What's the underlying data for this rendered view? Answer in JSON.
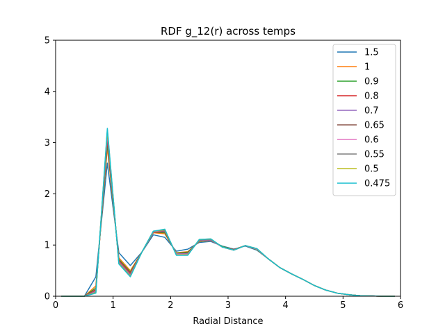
{
  "chart_data": {
    "type": "line",
    "title": "RDF g_12(r) across temps",
    "xlabel": "Radial Distance",
    "ylabel": "",
    "xlim": [
      0,
      6
    ],
    "ylim": [
      0,
      5
    ],
    "xticks": [
      "0",
      "1",
      "2",
      "3",
      "4",
      "5",
      "6"
    ],
    "yticks": [
      "0",
      "1",
      "2",
      "3",
      "4",
      "5"
    ],
    "grid": false,
    "legend_position": "top-right",
    "x": [
      0.1,
      0.3,
      0.5,
      0.7,
      0.9,
      1.1,
      1.3,
      1.5,
      1.7,
      1.9,
      2.1,
      2.3,
      2.5,
      2.7,
      2.9,
      3.1,
      3.3,
      3.5,
      3.7,
      3.9,
      4.1,
      4.3,
      4.5,
      4.7,
      4.9,
      5.1,
      5.3,
      5.5,
      5.7,
      5.9
    ],
    "series": [
      {
        "name": "1.5",
        "color": "#1f77b4",
        "values": [
          0,
          0,
          0,
          0.38,
          2.6,
          0.85,
          0.6,
          0.86,
          1.2,
          1.15,
          0.88,
          0.92,
          1.05,
          1.07,
          0.98,
          0.92,
          0.98,
          0.9,
          0.73,
          0.56,
          0.44,
          0.33,
          0.21,
          0.12,
          0.06,
          0.03,
          0.01,
          0.005,
          0,
          0
        ]
      },
      {
        "name": "1",
        "color": "#ff7f0e",
        "values": [
          0,
          0,
          0,
          0.2,
          2.9,
          0.75,
          0.5,
          0.86,
          1.24,
          1.22,
          0.85,
          0.87,
          1.07,
          1.09,
          0.97,
          0.91,
          0.99,
          0.91,
          0.73,
          0.56,
          0.44,
          0.33,
          0.21,
          0.12,
          0.06,
          0.03,
          0.01,
          0.005,
          0,
          0
        ]
      },
      {
        "name": "0.9",
        "color": "#2ca02c",
        "values": [
          0,
          0,
          0,
          0.16,
          2.98,
          0.72,
          0.47,
          0.86,
          1.25,
          1.24,
          0.84,
          0.86,
          1.08,
          1.1,
          0.97,
          0.91,
          0.99,
          0.91,
          0.73,
          0.56,
          0.44,
          0.33,
          0.21,
          0.12,
          0.06,
          0.03,
          0.01,
          0.005,
          0,
          0
        ]
      },
      {
        "name": "0.8",
        "color": "#d62728",
        "values": [
          0,
          0,
          0,
          0.13,
          3.05,
          0.7,
          0.45,
          0.86,
          1.25,
          1.26,
          0.83,
          0.84,
          1.09,
          1.1,
          0.96,
          0.91,
          0.99,
          0.92,
          0.73,
          0.56,
          0.44,
          0.33,
          0.21,
          0.12,
          0.06,
          0.03,
          0.01,
          0.005,
          0,
          0
        ]
      },
      {
        "name": "0.7",
        "color": "#9467bd",
        "values": [
          0,
          0,
          0,
          0.11,
          3.12,
          0.68,
          0.43,
          0.86,
          1.26,
          1.27,
          0.83,
          0.83,
          1.09,
          1.1,
          0.96,
          0.9,
          0.99,
          0.92,
          0.73,
          0.56,
          0.44,
          0.33,
          0.21,
          0.12,
          0.06,
          0.03,
          0.01,
          0.005,
          0,
          0
        ]
      },
      {
        "name": "0.65",
        "color": "#8c564b",
        "values": [
          0,
          0,
          0,
          0.1,
          3.15,
          0.67,
          0.42,
          0.86,
          1.26,
          1.28,
          0.82,
          0.82,
          1.1,
          1.11,
          0.96,
          0.9,
          0.99,
          0.92,
          0.73,
          0.56,
          0.44,
          0.33,
          0.21,
          0.12,
          0.06,
          0.03,
          0.01,
          0.005,
          0,
          0
        ]
      },
      {
        "name": "0.6",
        "color": "#e377c2",
        "values": [
          0,
          0,
          0,
          0.09,
          3.18,
          0.66,
          0.41,
          0.86,
          1.26,
          1.29,
          0.82,
          0.82,
          1.1,
          1.11,
          0.96,
          0.9,
          0.99,
          0.92,
          0.73,
          0.56,
          0.44,
          0.33,
          0.21,
          0.12,
          0.06,
          0.03,
          0.01,
          0.005,
          0,
          0
        ]
      },
      {
        "name": "0.55",
        "color": "#7f7f7f",
        "values": [
          0,
          0,
          0,
          0.08,
          3.22,
          0.65,
          0.4,
          0.86,
          1.27,
          1.29,
          0.81,
          0.81,
          1.1,
          1.11,
          0.96,
          0.9,
          0.99,
          0.93,
          0.73,
          0.56,
          0.44,
          0.33,
          0.21,
          0.12,
          0.06,
          0.03,
          0.01,
          0.005,
          0,
          0
        ]
      },
      {
        "name": "0.5",
        "color": "#bcbd22",
        "values": [
          0,
          0,
          0,
          0.07,
          3.25,
          0.64,
          0.39,
          0.86,
          1.27,
          1.3,
          0.81,
          0.81,
          1.11,
          1.12,
          0.96,
          0.9,
          0.99,
          0.93,
          0.73,
          0.56,
          0.44,
          0.33,
          0.21,
          0.12,
          0.06,
          0.03,
          0.01,
          0.005,
          0,
          0
        ]
      },
      {
        "name": "0.475",
        "color": "#17becf",
        "values": [
          0,
          0,
          0,
          0.06,
          3.28,
          0.63,
          0.38,
          0.86,
          1.27,
          1.31,
          0.8,
          0.8,
          1.11,
          1.12,
          0.96,
          0.9,
          0.99,
          0.93,
          0.73,
          0.56,
          0.44,
          0.33,
          0.21,
          0.12,
          0.06,
          0.03,
          0.01,
          0.005,
          0,
          0
        ]
      }
    ]
  }
}
